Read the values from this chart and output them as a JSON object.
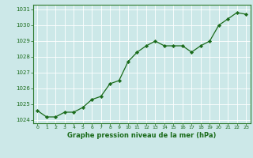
{
  "x": [
    0,
    1,
    2,
    3,
    4,
    5,
    6,
    7,
    8,
    9,
    10,
    11,
    12,
    13,
    14,
    15,
    16,
    17,
    18,
    19,
    20,
    21,
    22,
    23
  ],
  "y": [
    1024.6,
    1024.2,
    1024.2,
    1024.5,
    1024.5,
    1024.8,
    1025.3,
    1025.5,
    1026.3,
    1026.5,
    1027.7,
    1028.3,
    1028.7,
    1029.0,
    1028.7,
    1028.7,
    1028.7,
    1028.3,
    1028.7,
    1029.0,
    1030.0,
    1030.4,
    1030.8,
    1030.7
  ],
  "ylim": [
    1023.8,
    1031.3
  ],
  "xlim": [
    -0.5,
    23.5
  ],
  "yticks": [
    1024,
    1025,
    1026,
    1027,
    1028,
    1029,
    1030,
    1031
  ],
  "xticks": [
    0,
    1,
    2,
    3,
    4,
    5,
    6,
    7,
    8,
    9,
    10,
    11,
    12,
    13,
    14,
    15,
    16,
    17,
    18,
    19,
    20,
    21,
    22,
    23
  ],
  "xlabel": "Graphe pression niveau de la mer (hPa)",
  "line_color": "#1a6b1a",
  "marker_color": "#1a6b1a",
  "bg_color": "#cce8e8",
  "grid_color": "#ffffff",
  "border_color": "#2d7a2d",
  "tick_label_color": "#1a6b1a",
  "xlabel_color": "#1a6b1a"
}
